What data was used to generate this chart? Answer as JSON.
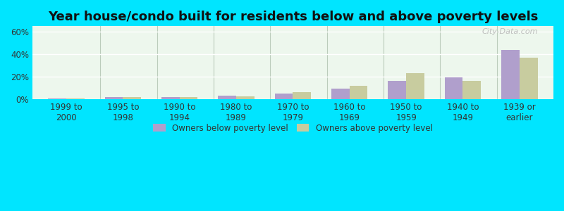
{
  "title": "Year house/condo built for residents below and above poverty levels",
  "categories": [
    "1999 to\n2000",
    "1995 to\n1998",
    "1990 to\n1994",
    "1980 to\n1989",
    "1970 to\n1979",
    "1960 to\n1969",
    "1950 to\n1959",
    "1940 to\n1949",
    "1939 or\nearlier"
  ],
  "below_poverty": [
    0.5,
    2.0,
    2.0,
    3.0,
    5.0,
    9.0,
    16.5,
    19.5,
    44.0
  ],
  "above_poverty": [
    0.5,
    1.5,
    1.5,
    2.5,
    6.0,
    12.0,
    23.0,
    16.5,
    37.0
  ],
  "below_color": "#b09fcc",
  "above_color": "#c8cc9f",
  "ylim": [
    0,
    65
  ],
  "yticks": [
    0,
    20,
    40,
    60
  ],
  "ytick_labels": [
    "0%",
    "20%",
    "40%",
    "60%"
  ],
  "title_fontsize": 13,
  "tick_fontsize": 8.5,
  "legend_label_below": "Owners below poverty level",
  "legend_label_above": "Owners above poverty level",
  "outer_bg_color": "#00e5ff",
  "watermark": "City-Data.com"
}
